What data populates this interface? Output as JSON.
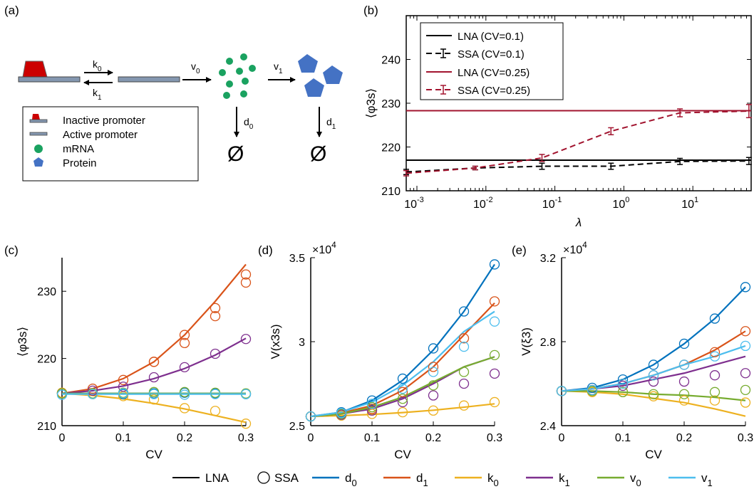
{
  "panels": {
    "a": {
      "label": "(a)",
      "rates": {
        "k0": "k",
        "k0_sub": "0",
        "k1": "k",
        "k1_sub": "1",
        "v0": "v",
        "v0_sub": "0",
        "v1": "v",
        "v1_sub": "1",
        "d0": "d",
        "d0_sub": "0",
        "d1": "d",
        "d1_sub": "1"
      },
      "empty_symbol": "Ø",
      "legend": [
        "Inactive promoter",
        "Active promoter",
        "mRNA",
        "Protein"
      ],
      "colors": {
        "promoter_inactive": "#cc0000",
        "promoter_bar": "#8497b0",
        "mrna": "#1aa260",
        "protein": "#4472c4"
      }
    },
    "b": {
      "label": "(b)"
    },
    "c": {
      "label": "(c)"
    },
    "d": {
      "label": "(d)"
    },
    "e": {
      "label": "(e)"
    }
  },
  "bottom_legend": {
    "LNA": "LNA",
    "SSA": "SSA",
    "items": [
      {
        "base": "d",
        "sub": "0",
        "color": "#0072BD"
      },
      {
        "base": "d",
        "sub": "1",
        "color": "#D95319"
      },
      {
        "base": "k",
        "sub": "0",
        "color": "#EDB120"
      },
      {
        "base": "k",
        "sub": "1",
        "color": "#7E2F8E"
      },
      {
        "base": "v",
        "sub": "0",
        "color": "#77AC30"
      },
      {
        "base": "v",
        "sub": "1",
        "color": "#4DBEEE"
      }
    ]
  },
  "chart_data": [
    {
      "panel": "b",
      "type": "line",
      "xscale": "log",
      "xlabel": "λ",
      "ylabel": "⟨φ3s⟩",
      "xlim": [
        0.0007,
        70
      ],
      "ylim": [
        210,
        250
      ],
      "xticks": [
        {
          "v": 0.001,
          "base": "10",
          "exp": "-3"
        },
        {
          "v": 0.01,
          "base": "10",
          "exp": "-2"
        },
        {
          "v": 0.1,
          "base": "10",
          "exp": "-1"
        },
        {
          "v": 1,
          "base": "10",
          "exp": "0"
        },
        {
          "v": 10,
          "base": "10",
          "exp": "1"
        }
      ],
      "yticks": [
        210,
        220,
        230,
        240
      ],
      "legend_position": "top-left",
      "series": [
        {
          "name": "LNA (CV=0.1)",
          "style": "solid",
          "color": "#000000",
          "x": [
            0.0007,
            70
          ],
          "y": [
            217,
            217
          ]
        },
        {
          "name": "SSA (CV=0.1)",
          "style": "dashed",
          "color": "#000000",
          "x": [
            0.0007,
            0.007,
            0.065,
            0.65,
            6.5,
            65
          ],
          "y": [
            214.3,
            215.2,
            215.6,
            215.6,
            216.7,
            216.8
          ],
          "err": [
            0.6,
            0.4,
            0.7,
            0.7,
            0.7,
            0.8
          ]
        },
        {
          "name": "LNA (CV=0.25)",
          "style": "solid",
          "color": "#A2142F",
          "x": [
            0.0007,
            70
          ],
          "y": [
            228.3,
            228.3
          ]
        },
        {
          "name": "SSA (CV=0.25)",
          "style": "dashed",
          "color": "#A2142F",
          "x": [
            0.0007,
            0.007,
            0.065,
            0.65,
            6.5,
            65
          ],
          "y": [
            214,
            215.2,
            217.5,
            223.6,
            227.8,
            228.2
          ],
          "err": [
            0.6,
            0.4,
            0.8,
            0.8,
            0.9,
            1.5
          ]
        }
      ]
    },
    {
      "panel": "c",
      "type": "line",
      "xlabel": "CV",
      "ylabel": "⟨φ3s⟩",
      "xlim": [
        0,
        0.3
      ],
      "ylim": [
        210,
        235
      ],
      "xticks": [
        0,
        0.1,
        0.2,
        0.3
      ],
      "yticks": [
        210,
        220,
        230
      ],
      "x": [
        0,
        0.05,
        0.1,
        0.15,
        0.2,
        0.25,
        0.3
      ],
      "series": [
        {
          "name": "d0",
          "color": "#0072BD",
          "lna": [
            214.8,
            214.8,
            214.8,
            214.8,
            214.8,
            214.8,
            214.8
          ],
          "ssa": [
            214.8,
            214.8,
            214.7,
            214.8,
            214.9,
            214.8,
            214.7
          ]
        },
        {
          "name": "d1",
          "color": "#D95319",
          "lna": [
            214.8,
            215.5,
            217.0,
            219.5,
            223.5,
            228.5,
            234.0
          ],
          "ssa": [
            214.9,
            215.5,
            216.8,
            219.5,
            222.3,
            226.3,
            231.3
          ]
        },
        {
          "name": "k0",
          "color": "#EDB120",
          "lna": [
            214.8,
            214.5,
            214.0,
            213.3,
            212.5,
            211.5,
            210.5
          ],
          "ssa": [
            214.9,
            214.7,
            214.4,
            213.9,
            212.6,
            212.2,
            210.3
          ]
        },
        {
          "name": "k1",
          "color": "#7E2F8E",
          "lna": [
            214.8,
            215.2,
            215.9,
            217.0,
            218.5,
            220.5,
            223.0
          ],
          "ssa": [
            214.8,
            215.2,
            215.8,
            217.2,
            218.7,
            220.7,
            222.9
          ]
        },
        {
          "name": "v0",
          "color": "#77AC30",
          "lna": [
            214.8,
            214.8,
            214.8,
            214.8,
            214.8,
            214.8,
            214.8
          ],
          "ssa": [
            214.8,
            214.8,
            214.9,
            215.0,
            215.0,
            214.9,
            214.8
          ]
        },
        {
          "name": "v1",
          "color": "#4DBEEE",
          "lna": [
            214.7,
            214.7,
            214.7,
            214.7,
            214.7,
            214.7,
            214.7
          ],
          "ssa": [
            214.6,
            214.7,
            214.8,
            214.7,
            214.6,
            214.7,
            214.7
          ]
        }
      ],
      "ssa_extra": [
        {
          "color": "#D95319",
          "x": [
            0.15,
            0.2,
            0.25,
            0.3
          ],
          "y": [
            219.5,
            223.5,
            227.5,
            232.5
          ]
        }
      ]
    },
    {
      "panel": "d",
      "type": "line",
      "xlabel": "CV",
      "ylabel": "V(x3s)",
      "multiplier": "×10",
      "multiplier_exp": "4",
      "xlim": [
        0,
        0.3
      ],
      "ylim": [
        2.5,
        3.5
      ],
      "xticks": [
        0,
        0.1,
        0.2,
        0.3
      ],
      "yticks": [
        2.5,
        3,
        3.5
      ],
      "ytick_labels": [
        "2.5",
        "3",
        "3.5"
      ],
      "x": [
        0,
        0.05,
        0.1,
        0.15,
        0.2,
        0.25,
        0.3
      ],
      "series": [
        {
          "name": "d0",
          "color": "#0072BD",
          "lna": [
            2.555,
            2.58,
            2.65,
            2.77,
            2.95,
            3.18,
            3.46
          ],
          "ssa": [
            2.555,
            2.58,
            2.65,
            2.78,
            2.96,
            3.18,
            3.46
          ]
        },
        {
          "name": "d1",
          "color": "#D95319",
          "lna": [
            2.555,
            2.575,
            2.62,
            2.71,
            2.85,
            3.04,
            3.23
          ],
          "ssa": [
            2.555,
            2.57,
            2.6,
            2.7,
            2.85,
            3.02,
            3.24
          ]
        },
        {
          "name": "k0",
          "color": "#EDB120",
          "lna": [
            2.555,
            2.56,
            2.567,
            2.578,
            2.592,
            2.61,
            2.63
          ],
          "ssa": [
            2.555,
            2.56,
            2.57,
            2.58,
            2.59,
            2.62,
            2.64
          ]
        },
        {
          "name": "k1",
          "color": "#7E2F8E",
          "lna": [
            2.555,
            2.57,
            2.6,
            2.66,
            2.75,
            2.85,
            2.91
          ],
          "ssa": [
            2.555,
            2.565,
            2.59,
            2.64,
            2.68,
            2.75,
            2.81
          ]
        },
        {
          "name": "v0",
          "color": "#77AC30",
          "lna": [
            2.555,
            2.57,
            2.61,
            2.67,
            2.76,
            2.85,
            2.91
          ],
          "ssa": [
            2.555,
            2.57,
            2.61,
            2.66,
            2.74,
            2.82,
            2.92
          ]
        },
        {
          "name": "v1",
          "color": "#4DBEEE",
          "lna": [
            2.555,
            2.58,
            2.64,
            2.74,
            2.88,
            3.06,
            3.18
          ],
          "ssa": [
            2.555,
            2.575,
            2.63,
            2.72,
            2.82,
            2.97,
            3.12
          ]
        }
      ]
    },
    {
      "panel": "e",
      "type": "line",
      "xlabel": "CV",
      "ylabel": "V(ξ3)",
      "multiplier": "×10",
      "multiplier_exp": "4",
      "xlim": [
        0,
        0.3
      ],
      "ylim": [
        2.4,
        3.2
      ],
      "xticks": [
        0,
        0.1,
        0.2,
        0.3
      ],
      "yticks": [
        2.4,
        2.8,
        3.2
      ],
      "ytick_labels": [
        "2.4",
        "2.8",
        "3.2"
      ],
      "x": [
        0,
        0.05,
        0.1,
        0.15,
        0.2,
        0.25,
        0.3
      ],
      "series": [
        {
          "name": "d0",
          "color": "#0072BD",
          "lna": [
            2.565,
            2.58,
            2.62,
            2.69,
            2.79,
            2.91,
            3.06
          ],
          "ssa": [
            2.565,
            2.58,
            2.62,
            2.69,
            2.79,
            2.91,
            3.06
          ]
        },
        {
          "name": "d1",
          "color": "#D95319",
          "lna": [
            2.565,
            2.575,
            2.6,
            2.64,
            2.69,
            2.76,
            2.85
          ],
          "ssa": [
            2.565,
            2.57,
            2.6,
            2.64,
            2.69,
            2.75,
            2.85
          ]
        },
        {
          "name": "k0",
          "color": "#EDB120",
          "lna": [
            2.565,
            2.56,
            2.55,
            2.53,
            2.51,
            2.48,
            2.445
          ],
          "ssa": [
            2.565,
            2.56,
            2.56,
            2.54,
            2.52,
            2.52,
            2.51
          ]
        },
        {
          "name": "k1",
          "color": "#7E2F8E",
          "lna": [
            2.565,
            2.575,
            2.59,
            2.62,
            2.65,
            2.69,
            2.73
          ],
          "ssa": [
            2.565,
            2.57,
            2.59,
            2.61,
            2.61,
            2.64,
            2.65
          ]
        },
        {
          "name": "v0",
          "color": "#77AC30",
          "lna": [
            2.565,
            2.565,
            2.56,
            2.55,
            2.545,
            2.535,
            2.52
          ],
          "ssa": [
            2.565,
            2.565,
            2.56,
            2.55,
            2.55,
            2.56,
            2.57
          ]
        },
        {
          "name": "v1",
          "color": "#4DBEEE",
          "lna": [
            2.565,
            2.575,
            2.6,
            2.64,
            2.69,
            2.73,
            2.78
          ],
          "ssa": [
            2.565,
            2.57,
            2.6,
            2.64,
            2.69,
            2.73,
            2.78
          ]
        }
      ]
    }
  ]
}
